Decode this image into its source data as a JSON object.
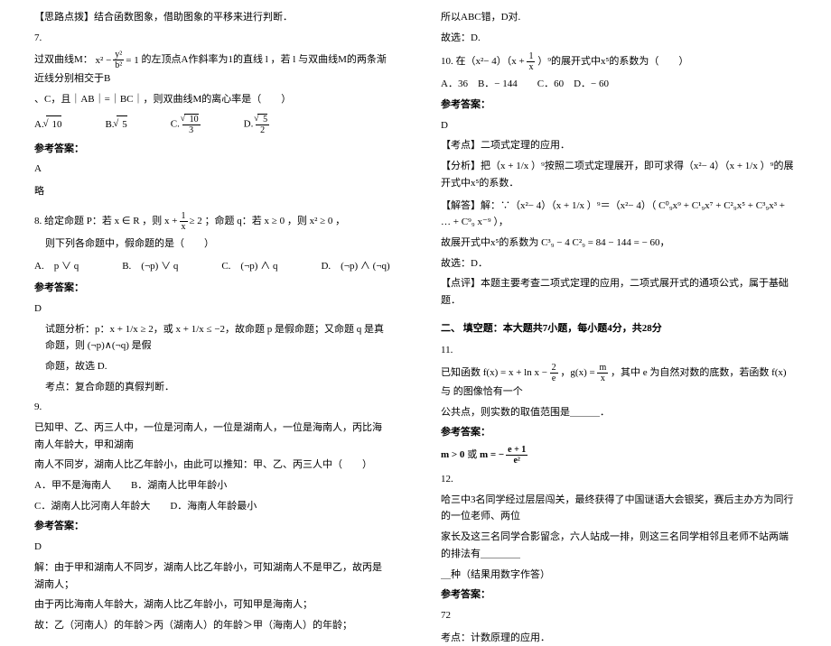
{
  "left": {
    "tip": "【思路点拨】结合函数图象，借助图象的平移来进行判断．",
    "q7": "7.",
    "q7text": "过双曲线M：",
    "q7formula_lhs_num": "x²",
    "q7formula_lhs_den": "y²",
    "q7formula_rhs": "= 1",
    "q7text2": "的左顶点A作斜率为1的直线 l ，若 l 与双曲线M的两条渐近线分别相交于B",
    "q7text3": "、C，且｜AB｜=｜BC｜，则双曲线M的离心率是（　　）",
    "optA_label": "A.",
    "optA": "10",
    "optB_label": "B.",
    "optB": "5",
    "optC_label": "C.",
    "optC_num": "10",
    "optC_den": "3",
    "optD_label": "D.",
    "optD_num": "5",
    "optD_den": "2",
    "ans_hdr": "参考答案：",
    "ans7": "A",
    "ans7b": "略",
    "q8": "8. 给定命题 P：若 x ∈ R ，则",
    "q8f_lhs": "x +",
    "q8f_num": "1",
    "q8f_den": "x",
    "q8f_rhs": "≥ 2",
    "q8text2": "；命题 q：若 x ≥ 0 ，则 x² ≥ 0 ，",
    "q8text3": "则下列各命题中，假命题的是（　　）",
    "q8A": "A.　p ∨ q",
    "q8B": "B.　(¬p) ∨ q",
    "q8C": "C.　(¬p) ∧ q",
    "q8D": "D.　(¬p) ∧ (¬q)",
    "ans8": "D",
    "ana8a": "试题分析：p：x + 1/x ≥ 2，或 x + 1/x ≤ −2，故命题 p 是假命题；又命题 q 是真命题，则 (¬p)∧(¬q) 是假",
    "ana8b": "命题，故选 D.",
    "ana8c": "考点：复合命题的真假判断．",
    "q9": "9.",
    "q9a": "已知甲、乙、丙三人中，一位是河南人，一位是湖南人，一位是海南人，丙比海南人年龄大，甲和湖南",
    "q9b": "南人不同岁，湖南人比乙年龄小，由此可以推知：甲、乙、丙三人中（　　）",
    "q9A": "A．甲不是海南人　　B．湖南人比甲年龄小",
    "q9C": "C．湖南人比河南人年龄大　　D．海南人年龄最小",
    "ans9": "D",
    "sol9a": "解：由于甲和湖南人不同岁，湖南人比乙年龄小，可知湖南人不是甲乙，故丙是湖南人；",
    "sol9b": "由于丙比海南人年龄大，湖南人比乙年龄小，可知甲是海南人；",
    "sol9c": "故：乙（河南人）的年龄＞丙（湖南人）的年龄＞甲（海南人）的年龄；"
  },
  "right": {
    "r1": "所以ABC错，D对.",
    "r2": "故选：D.",
    "q10a": "10. 在（x²− 4）（x +",
    "q10b": "）⁹的展开式中x⁵的系数为（　　）",
    "q10f_num": "1",
    "q10f_den": "x",
    "q10opts": "A．36　B．− 144　　C．60　D．− 60",
    "ans_hdr": "参考答案：",
    "ans10": "D",
    "kd": "【考点】二项式定理的应用．",
    "fx": "【分析】把（x + 1/x ）⁹按照二项式定理展开，即可求得（x²− 4）（x + 1/x ）⁹的展开式中x⁵的系数．",
    "jd1": "【解答】解：∵（x²− 4）（x + 1/x ）⁹＝（x²− 4）（ C⁰₉x⁹ + C¹₉x⁷ + C²₉x⁵ + C³₉x³ + … + C⁹₉ x⁻⁹ ），",
    "jd2": "故展开式中x⁵的系数为 C³₉ − 4 C²₉ = 84 − 144 = − 60，",
    "jd3": "故选：D．",
    "dp": "【点评】本题主要考查二项式定理的应用，二项式展开式的通项公式，属于基础题．",
    "sec2": "二、 填空题：本大题共7小题，每小题4分，共28分",
    "q11": "11.",
    "q11a": "已知函数 f(x) = x + ln x −",
    "q11f1_num": "2",
    "q11f1_den": "e",
    "q11b": "，g(x) =",
    "q11f2_num": "m",
    "q11f2_den": "x",
    "q11c": "，其中 e 为自然对数的底数，若函数 f(x) 与 的图像恰有一个",
    "q11d": "公共点，则实数的取值范围是＿＿＿．",
    "ans11a": "m > 0",
    "ans11or": "或",
    "ans11b_lhs": "m = −",
    "ans11b_num": "e + 1",
    "ans11b_den": "e²",
    "q12": "12.",
    "q12a": "哈三中3名同学经过层层闯关，最终获得了中国谜语大会银奖，赛后主办方为同行的一位老师、两位",
    "q12b": "家长及这三名同学合影留念，六人站成一排，则这三名同学相邻且老师不站两端的排法有＿＿＿＿",
    "q12c": "＿种（结果用数字作答）",
    "ans12": "72",
    "kd12": "考点：计数原理的应用．"
  }
}
